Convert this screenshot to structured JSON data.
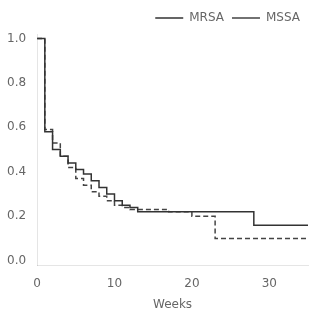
{
  "chart_data": {
    "type": "line",
    "xlabel": "Weeks",
    "series": [
      {
        "name": "MRSA",
        "color": "#333333",
        "line_style": "solid",
        "x": [
          0,
          0,
          1,
          2,
          3,
          4,
          5,
          6,
          7,
          8,
          9,
          10,
          11,
          12,
          13,
          15,
          20,
          28,
          35
        ],
        "values": [
          1.0,
          1.0,
          0.58,
          0.5,
          0.47,
          0.44,
          0.41,
          0.39,
          0.36,
          0.33,
          0.3,
          0.27,
          0.25,
          0.24,
          0.22,
          0.22,
          0.22,
          0.16,
          0.16
        ]
      },
      {
        "name": "MSSA",
        "color": "#444444",
        "line_style": "dashed",
        "x": [
          0,
          0,
          1,
          2,
          3,
          4,
          5,
          6,
          7,
          8,
          9,
          10,
          11,
          12,
          13,
          14,
          15,
          17,
          20,
          22,
          23,
          28,
          35
        ],
        "values": [
          1.0,
          1.0,
          0.59,
          0.53,
          0.47,
          0.42,
          0.37,
          0.34,
          0.31,
          0.29,
          0.27,
          0.25,
          0.24,
          0.23,
          0.23,
          0.23,
          0.23,
          0.22,
          0.2,
          0.2,
          0.1,
          0.1,
          0.1
        ]
      }
    ],
    "xlim": [
      0,
      35
    ],
    "ylim": [
      -0.02,
      1.02
    ],
    "xticks": [
      0,
      10,
      20,
      30
    ],
    "yticks": [
      {
        "value": 0.0,
        "label": "0.0"
      },
      0.2,
      0.4,
      0.6,
      0.8,
      {
        "value": 1.0,
        "label": "1.0"
      }
    ],
    "grid": false,
    "legend": "upper right"
  }
}
